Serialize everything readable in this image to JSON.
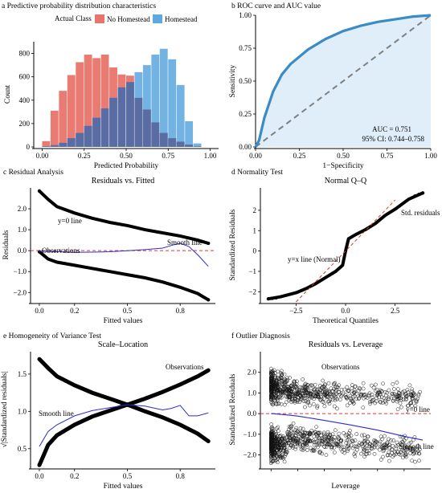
{
  "chart_data": [
    {
      "type": "bar",
      "panel": "a",
      "title": "Predictive probability distribution characteristics",
      "xlabel": "Predicted Probability",
      "ylabel": "Count",
      "xlim": [
        -0.05,
        1.05
      ],
      "ylim": [
        0,
        900
      ],
      "xticks": [
        0.0,
        0.25,
        0.5,
        0.75,
        1.0
      ],
      "xticklabels": [
        "0.00",
        "0.25",
        "0.50",
        "0.75",
        "1.00"
      ],
      "yticks": [
        0,
        200,
        400,
        600,
        800
      ],
      "legend": {
        "title": "Actual Class",
        "placement": "top"
      },
      "bin_starts": [
        0.0,
        0.05,
        0.1,
        0.15,
        0.2,
        0.25,
        0.3,
        0.35,
        0.4,
        0.45,
        0.5,
        0.55,
        0.6,
        0.65,
        0.7,
        0.75,
        0.8,
        0.85,
        0.9
      ],
      "bin_width": 0.05,
      "series": [
        {
          "name": "No Homestead",
          "color": "#e8746b",
          "values": [
            50,
            310,
            480,
            615,
            725,
            790,
            760,
            790,
            680,
            620,
            610,
            420,
            320,
            210,
            120,
            75,
            45,
            20,
            5
          ]
        },
        {
          "name": "Homestead",
          "color": "#5ea9df",
          "values": [
            5,
            15,
            35,
            75,
            120,
            180,
            250,
            330,
            420,
            510,
            555,
            640,
            700,
            790,
            840,
            750,
            530,
            220,
            30
          ]
        }
      ]
    },
    {
      "type": "line",
      "panel": "b",
      "title": "ROC curve and AUC value",
      "xlabel": "1−Specificity",
      "ylabel": "Sensitivity",
      "xlim": [
        0,
        1
      ],
      "ylim": [
        0,
        1
      ],
      "xticks": [
        0.0,
        0.25,
        0.5,
        0.75,
        1.0
      ],
      "xticklabels": [
        "0.00",
        "0.25",
        "0.50",
        "0.75",
        "1.00"
      ],
      "yticks": [
        0.0,
        0.25,
        0.5,
        0.75,
        1.0
      ],
      "yticklabels": [
        "0.00",
        "0.25",
        "0.50",
        "0.75",
        "1.00"
      ],
      "annotations": [
        "AUC = 0.751",
        "95% CI: 0.744–0.758"
      ],
      "series": [
        {
          "role": "roc",
          "color": "#3b8bc4",
          "x": [
            0,
            0.02,
            0.05,
            0.1,
            0.15,
            0.2,
            0.3,
            0.4,
            0.5,
            0.6,
            0.7,
            0.8,
            0.9,
            1.0
          ],
          "y": [
            0,
            0.05,
            0.22,
            0.42,
            0.55,
            0.63,
            0.74,
            0.82,
            0.88,
            0.92,
            0.95,
            0.97,
            0.99,
            1.0
          ]
        },
        {
          "role": "diagonal",
          "color": "#7f7f7f",
          "x": [
            0,
            1
          ],
          "y": [
            0,
            1
          ]
        }
      ]
    },
    {
      "type": "scatter",
      "panel": "c",
      "panel_label": "Residual Analysis",
      "title": "Residuals vs. Fitted",
      "xlabel": "Fitted values",
      "ylabel": "Residuals",
      "xlim": [
        -0.05,
        1.0
      ],
      "ylim": [
        -2.45,
        3.0
      ],
      "xticks": [
        0.0,
        0.2,
        0.5,
        0.8
      ],
      "xticklabels": [
        "0.0",
        "0.2",
        "0.5",
        "0.8"
      ],
      "yticks": [
        -2.0,
        -1.0,
        0.0,
        1.0,
        2.0
      ],
      "yticklabels": [
        "−2.0",
        "−1.0",
        "0.0",
        "1.0",
        "2.0"
      ],
      "annotations": [
        "y=0 line",
        "Smooth line",
        "Observations"
      ],
      "series": [
        {
          "name": "Observations upper",
          "x": [
            0.0,
            0.05,
            0.1,
            0.2,
            0.3,
            0.4,
            0.5,
            0.6,
            0.7,
            0.8,
            0.9,
            0.96
          ],
          "y": [
            2.85,
            2.45,
            2.1,
            1.8,
            1.55,
            1.35,
            1.2,
            1.0,
            0.85,
            0.7,
            0.5,
            0.35
          ]
        },
        {
          "name": "Observations lower",
          "x": [
            0.0,
            0.05,
            0.1,
            0.2,
            0.3,
            0.4,
            0.5,
            0.6,
            0.7,
            0.8,
            0.9,
            0.96
          ],
          "y": [
            -0.05,
            -0.4,
            -0.55,
            -0.7,
            -0.85,
            -1.0,
            -1.15,
            -1.3,
            -1.5,
            -1.75,
            -2.05,
            -2.35
          ]
        },
        {
          "name": "Smooth line",
          "color": "#2b2bd6",
          "x": [
            0.0,
            0.1,
            0.2,
            0.3,
            0.4,
            0.5,
            0.6,
            0.7,
            0.75,
            0.8,
            0.85,
            0.9,
            0.96
          ],
          "y": [
            -0.02,
            -0.05,
            -0.08,
            -0.07,
            -0.05,
            0.0,
            0.05,
            0.12,
            0.25,
            0.35,
            0.2,
            -0.2,
            -0.75
          ]
        }
      ]
    },
    {
      "type": "scatter",
      "panel": "d",
      "panel_label": "Normality Test",
      "title": "Normal Q–Q",
      "xlabel": "Theoretical Quantiles",
      "ylabel": "Standardized Residuals",
      "xlim": [
        -4.3,
        4.3
      ],
      "ylim": [
        -2.5,
        3.1
      ],
      "xticks": [
        -2.5,
        0.0,
        2.5
      ],
      "xticklabels": [
        "−2.5",
        "0.0",
        "2.5"
      ],
      "yticks": [
        -2,
        -1,
        0,
        1,
        2
      ],
      "yticklabels": [
        "−2",
        "−1",
        "0",
        "1",
        "2"
      ],
      "annotations": [
        "Std. residuals",
        "y=x line (Normal)"
      ],
      "series": [
        {
          "name": "Std. residuals",
          "x": [
            -3.9,
            -3.3,
            -2.5,
            -2.0,
            -1.5,
            -1.0,
            -0.5,
            -0.15,
            0.0,
            0.15,
            0.5,
            1.0,
            1.5,
            2.0,
            2.5,
            3.2,
            3.9
          ],
          "y": [
            -2.35,
            -2.25,
            -2.05,
            -1.85,
            -1.6,
            -1.3,
            -1.0,
            -0.7,
            0.0,
            0.6,
            0.8,
            1.05,
            1.35,
            1.75,
            2.05,
            2.55,
            2.85
          ]
        },
        {
          "name": "y=x line (Normal)",
          "color": "#e3342f",
          "x": [
            -2.5,
            2.5
          ],
          "y": [
            -2.5,
            2.5
          ]
        }
      ]
    },
    {
      "type": "scatter",
      "panel": "e",
      "panel_label": "Homogeneity of Variance Test",
      "title": "Scale–Location",
      "xlabel": "Fitted values",
      "ylabel": "√|Standardized residuals|",
      "xlim": [
        -0.05,
        1.0
      ],
      "ylim": [
        0.25,
        1.8
      ],
      "xticks": [
        0.0,
        0.2,
        0.5,
        0.8
      ],
      "xticklabels": [
        "0.0",
        "0.2",
        "0.5",
        "0.8"
      ],
      "yticks": [
        0.5,
        1.0,
        1.5
      ],
      "yticklabels": [
        "0.5",
        "1.0",
        "1.5"
      ],
      "annotations": [
        "Observations",
        "Smooth line"
      ],
      "series": [
        {
          "name": "Observations decreasing",
          "x": [
            0.0,
            0.05,
            0.1,
            0.2,
            0.3,
            0.4,
            0.5,
            0.6,
            0.7,
            0.8,
            0.9,
            0.96
          ],
          "y": [
            1.7,
            1.58,
            1.47,
            1.35,
            1.25,
            1.17,
            1.09,
            1.0,
            0.92,
            0.82,
            0.7,
            0.6
          ]
        },
        {
          "name": "Observations increasing",
          "x": [
            0.0,
            0.05,
            0.1,
            0.2,
            0.3,
            0.4,
            0.5,
            0.6,
            0.7,
            0.8,
            0.9,
            0.96
          ],
          "y": [
            0.28,
            0.55,
            0.68,
            0.82,
            0.93,
            1.01,
            1.09,
            1.17,
            1.26,
            1.36,
            1.47,
            1.55
          ]
        },
        {
          "name": "Smooth line",
          "color": "#2b2bd6",
          "x": [
            0.0,
            0.05,
            0.1,
            0.2,
            0.3,
            0.4,
            0.5,
            0.6,
            0.7,
            0.75,
            0.8,
            0.85,
            0.9,
            0.96
          ],
          "y": [
            0.53,
            0.73,
            0.82,
            0.94,
            1.01,
            1.05,
            1.09,
            1.07,
            1.02,
            1.04,
            1.08,
            0.94,
            0.94,
            0.98
          ]
        }
      ]
    },
    {
      "type": "scatter",
      "panel": "f",
      "panel_label": "Outlier Diagnosis",
      "title": "Residuals vs. Leverage",
      "xlabel": "Leverage",
      "ylabel": "Standardized Residuals",
      "xlim": [
        -0.0004,
        0.006
      ],
      "ylim": [
        -2.6,
        3.0
      ],
      "xticks": [
        0.0,
        0.001,
        0.002,
        0.003,
        0.004,
        0.005
      ],
      "xticklabels": [
        "",
        "",
        "",
        "",
        "",
        ""
      ],
      "yticks": [
        -2.0,
        -1.0,
        0.0,
        1.0,
        2.0
      ],
      "yticklabels": [
        "−2.0",
        "−1.0",
        "0.0",
        "1.0",
        "2.0"
      ],
      "annotations": [
        "Observations",
        "y=0 line",
        "Smooth line"
      ],
      "series": [
        {
          "name": "Smooth line",
          "color": "#2b2bd6",
          "x": [
            0.0,
            0.0005,
            0.001,
            0.0015,
            0.002,
            0.003,
            0.004,
            0.005,
            0.0057
          ],
          "y": [
            0.0,
            -0.05,
            -0.12,
            -0.22,
            -0.33,
            -0.55,
            -0.8,
            -1.1,
            -1.28
          ]
        },
        {
          "name": "y=0 line",
          "color": "#e3342f",
          "x": [
            -0.0004,
            0.006
          ],
          "y": [
            0.0,
            0.0
          ]
        }
      ]
    }
  ]
}
